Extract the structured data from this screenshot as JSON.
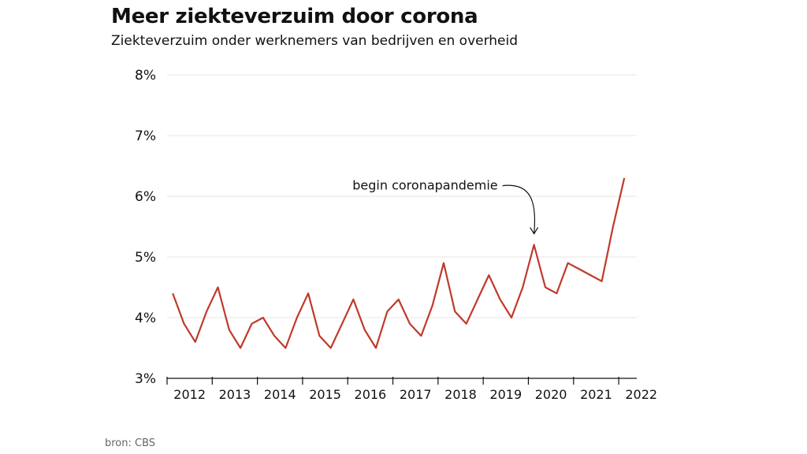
{
  "header": {
    "title": "Meer ziekteverzuim door corona",
    "subtitle": "Ziekteverzuim onder werknemers van bedrijven en overheid"
  },
  "footer": {
    "source": "bron: CBS"
  },
  "colors": {
    "line": "#c0392b",
    "grid": "#e6e6e6",
    "axis": "#111111"
  },
  "chart_data": {
    "type": "line",
    "ylim": [
      3,
      8
    ],
    "y_ticks": [
      3,
      4,
      5,
      6,
      7,
      8
    ],
    "y_tick_labels": [
      "3%",
      "4%",
      "5%",
      "6%",
      "7%",
      "8%"
    ],
    "x_range": [
      2012,
      2022.4
    ],
    "x_ticks": [
      "2012",
      "2013",
      "2014",
      "2015",
      "2016",
      "2017",
      "2018",
      "2019",
      "2020",
      "2021",
      "2022"
    ],
    "grid": "horizontal",
    "series": [
      {
        "x": [
          "2012-Q1",
          "2012-Q2",
          "2012-Q3",
          "2012-Q4",
          "2013-Q1",
          "2013-Q2",
          "2013-Q3",
          "2013-Q4",
          "2014-Q1",
          "2014-Q2",
          "2014-Q3",
          "2014-Q4",
          "2015-Q1",
          "2015-Q2",
          "2015-Q3",
          "2015-Q4",
          "2016-Q1",
          "2016-Q2",
          "2016-Q3",
          "2016-Q4",
          "2017-Q1",
          "2017-Q2",
          "2017-Q3",
          "2017-Q4",
          "2018-Q1",
          "2018-Q2",
          "2018-Q3",
          "2018-Q4",
          "2019-Q1",
          "2019-Q2",
          "2019-Q3",
          "2019-Q4",
          "2020-Q1",
          "2020-Q2",
          "2020-Q3",
          "2020-Q4",
          "2021-Q1",
          "2021-Q2",
          "2021-Q3",
          "2021-Q4",
          "2022-Q1"
        ],
        "values": [
          4.4,
          3.9,
          3.6,
          4.1,
          4.5,
          3.8,
          3.5,
          3.9,
          4.0,
          3.7,
          3.5,
          4.0,
          4.4,
          3.7,
          3.5,
          3.9,
          4.3,
          3.8,
          3.5,
          4.1,
          4.3,
          3.9,
          3.7,
          4.2,
          4.9,
          4.1,
          3.9,
          4.3,
          4.7,
          4.3,
          4.0,
          4.5,
          5.2,
          4.5,
          4.4,
          4.9,
          4.8,
          4.7,
          4.6,
          5.5,
          6.3
        ]
      }
    ],
    "annotations": [
      {
        "text": "begin coronapandemie",
        "x": "2020-Q1",
        "y": 5.2
      }
    ]
  }
}
